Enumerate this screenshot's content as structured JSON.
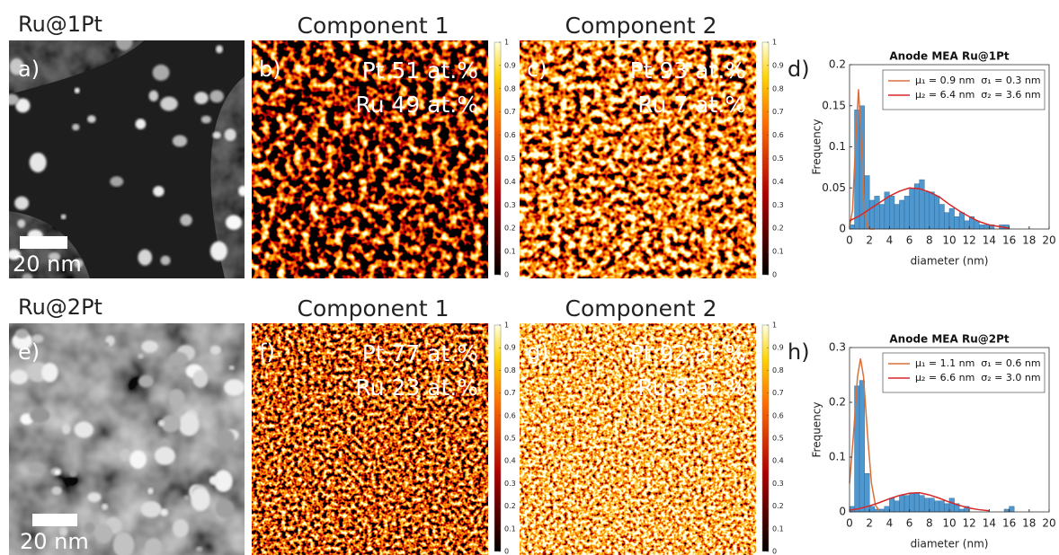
{
  "rows": [
    {
      "label": "Ru@1Pt",
      "image": {
        "label": "a)",
        "scale_bar": "20 nm"
      },
      "maps": [
        {
          "title": "Component 1",
          "label": "b)",
          "lines": [
            "Pt 51 at.%",
            "Ru 49 at.%"
          ]
        },
        {
          "title": "Component 2",
          "label": "c)",
          "lines": [
            "Pt 93 at.%",
            "Ru 7 at.%"
          ]
        }
      ],
      "histogram_label": "d)"
    },
    {
      "label": "Ru@2Pt",
      "image": {
        "label": "e)",
        "scale_bar": "20 nm"
      },
      "maps": [
        {
          "title": "Component 1",
          "label": "f)",
          "lines": [
            "Pt 77 at.%",
            "Ru 23 at.%"
          ]
        },
        {
          "title": "Component 2",
          "label": "g)",
          "lines": [
            "Pt 92 at.%",
            "Ru 8 at.%"
          ]
        }
      ],
      "histogram_label": "h)"
    }
  ],
  "colorbar_ticks": [
    0,
    0.1,
    0.2,
    0.3,
    0.4,
    0.5,
    0.6,
    0.7,
    0.8,
    0.9,
    1
  ],
  "chart_data": [
    {
      "type": "histogram",
      "title": "Anode MEA Ru@1Pt",
      "x_label": "diameter (nm)",
      "y_label": "Frequency",
      "color": "#4f97cf",
      "bins": [
        0,
        0.5,
        1,
        1.5,
        2,
        2.5,
        3,
        3.5,
        4,
        4.5,
        5,
        5.5,
        6,
        6.5,
        7,
        7.5,
        8,
        8.5,
        9,
        9.5,
        10,
        10.5,
        11,
        11.5,
        12,
        12.5,
        13,
        13.5,
        14,
        14.5,
        15,
        15.5,
        16
      ],
      "values": [
        0.005,
        0.145,
        0.15,
        0.065,
        0.035,
        0.04,
        0.03,
        0.045,
        0.04,
        0.03,
        0.035,
        0.04,
        0.05,
        0.055,
        0.06,
        0.045,
        0.045,
        0.04,
        0.03,
        0.02,
        0.025,
        0.015,
        0.02,
        0.01,
        0.015,
        0.01,
        0.005,
        0.005,
        0.005,
        0,
        0.005,
        0.005
      ],
      "series": [
        {
          "name": "μ₁ = 0.9 nm  σ₁ = 0.3 nm",
          "color": "#d9703a",
          "x": [
            0,
            0.3,
            0.6,
            0.9,
            1.2,
            1.5,
            1.8,
            2.1,
            2.5
          ],
          "values": [
            0.002,
            0.023,
            0.103,
            0.17,
            0.103,
            0.023,
            0.002,
            0,
            0
          ]
        },
        {
          "name": "μ₂ = 6.4 nm  σ₂ = 3.6 nm",
          "color": "#d62728",
          "x": [
            0,
            1,
            2,
            3,
            4,
            5,
            6,
            7,
            8,
            9,
            10,
            11,
            12,
            13,
            14,
            15,
            16
          ],
          "values": [
            0.01,
            0.016,
            0.024,
            0.032,
            0.04,
            0.046,
            0.05,
            0.049,
            0.045,
            0.039,
            0.03,
            0.022,
            0.015,
            0.009,
            0.005,
            0.003,
            0.001
          ]
        }
      ],
      "xlim": [
        0,
        20
      ],
      "xticks": [
        0,
        2,
        4,
        6,
        8,
        10,
        12,
        14,
        16,
        18,
        20
      ],
      "ylim": [
        0,
        0.2
      ],
      "yticks": [
        0,
        0.05,
        0.1,
        0.15,
        0.2
      ],
      "legend": "upper right"
    },
    {
      "type": "histogram",
      "title": "Anode MEA Ru@2Pt",
      "x_label": "diameter (nm)",
      "y_label": "Frequency",
      "color": "#4f97cf",
      "bins": [
        0,
        0.5,
        1,
        1.5,
        2,
        2.5,
        3,
        3.5,
        4,
        4.5,
        5,
        5.5,
        6,
        6.5,
        7,
        7.5,
        8,
        8.5,
        9,
        9.5,
        10,
        10.5,
        11,
        11.5,
        12,
        12.5,
        13,
        13.5,
        14,
        14.5,
        15,
        15.5,
        16,
        16.5
      ],
      "values": [
        0.01,
        0.23,
        0.24,
        0.07,
        0.01,
        0.005,
        0.005,
        0.01,
        0.025,
        0.02,
        0.03,
        0.03,
        0.035,
        0.035,
        0.03,
        0.025,
        0.025,
        0.02,
        0.02,
        0.015,
        0.025,
        0.015,
        0.005,
        0.01,
        0,
        0,
        0,
        0,
        0,
        0,
        0,
        0.005,
        0.01
      ],
      "series": [
        {
          "name": "μ₁ = 1.1 nm  σ₁ = 0.6 nm",
          "color": "#d9703a",
          "x": [
            0,
            0.4,
            0.8,
            1.1,
            1.4,
            1.8,
            2.2,
            2.6,
            3
          ],
          "values": [
            0.052,
            0.142,
            0.247,
            0.28,
            0.247,
            0.142,
            0.052,
            0.012,
            0.002
          ]
        },
        {
          "name": "μ₂ = 6.6 nm  σ₂ = 3.0 nm",
          "color": "#d62728",
          "x": [
            0,
            1,
            2,
            3,
            4,
            5,
            6,
            7,
            8,
            9,
            10,
            11,
            12,
            13,
            14
          ],
          "values": [
            0.003,
            0.006,
            0.011,
            0.017,
            0.024,
            0.03,
            0.034,
            0.035,
            0.031,
            0.025,
            0.018,
            0.012,
            0.007,
            0.004,
            0.002
          ]
        }
      ],
      "xlim": [
        0,
        20
      ],
      "xticks": [
        0,
        2,
        4,
        6,
        8,
        10,
        12,
        14,
        16,
        18,
        20
      ],
      "ylim": [
        0,
        0.3
      ],
      "yticks": [
        0,
        0.1,
        0.2,
        0.3
      ],
      "legend": "upper right"
    }
  ]
}
